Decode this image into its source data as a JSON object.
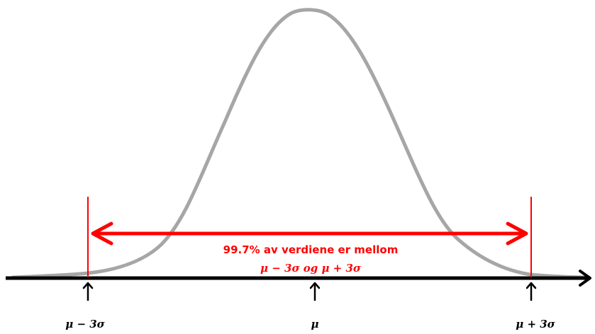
{
  "diagram": {
    "annotation_line1": "99.7% av verdiene er mellom",
    "annotation_line2": "μ − 3σ og μ + 3σ",
    "tick_labels": {
      "left": "μ − 3σ",
      "center": "μ",
      "right": "μ + 3σ"
    },
    "colors": {
      "curve": "#a6a6a6",
      "axis": "#000000",
      "highlight": "#ff0000"
    }
  }
}
